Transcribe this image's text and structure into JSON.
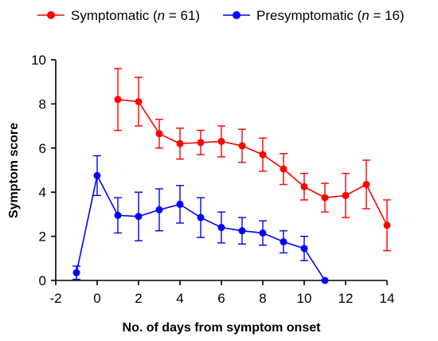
{
  "chart_data": {
    "type": "line",
    "xlabel": "No. of days from symptom onset",
    "ylabel": "Symptom score",
    "xlim": [
      -2,
      14
    ],
    "ylim": [
      0,
      10
    ],
    "x_ticks": [
      "-2",
      "0",
      "2",
      "4",
      "6",
      "8",
      "10",
      "12",
      "14"
    ],
    "y_ticks": [
      "0",
      "2",
      "4",
      "6",
      "8",
      "10"
    ],
    "legend_position": "top",
    "series": [
      {
        "name_parts": [
          "Symptomatic (",
          "n",
          " = 61)"
        ],
        "color": "#ff0000",
        "x": [
          1,
          2,
          3,
          4,
          5,
          6,
          7,
          8,
          9,
          10,
          11,
          12,
          13,
          14
        ],
        "y": [
          8.2,
          8.1,
          6.65,
          6.2,
          6.25,
          6.3,
          6.1,
          5.7,
          5.05,
          4.25,
          3.75,
          3.85,
          4.35,
          2.5
        ],
        "err": [
          1.4,
          1.1,
          0.65,
          0.7,
          0.55,
          0.7,
          0.75,
          0.75,
          0.7,
          0.6,
          0.65,
          1.0,
          1.1,
          1.15
        ]
      },
      {
        "name_parts": [
          "Presymptomatic (",
          "n",
          " = 16)"
        ],
        "color": "#0000ff",
        "x": [
          -1,
          0,
          1,
          2,
          3,
          4,
          5,
          6,
          7,
          8,
          9,
          10,
          11
        ],
        "y": [
          0.35,
          4.75,
          2.95,
          2.9,
          3.2,
          3.45,
          2.85,
          2.4,
          2.25,
          2.15,
          1.75,
          1.45,
          0.0
        ],
        "err": [
          0.3,
          0.9,
          0.8,
          1.1,
          0.95,
          0.85,
          0.9,
          0.7,
          0.6,
          0.55,
          0.5,
          0.55,
          0.0
        ]
      }
    ]
  }
}
